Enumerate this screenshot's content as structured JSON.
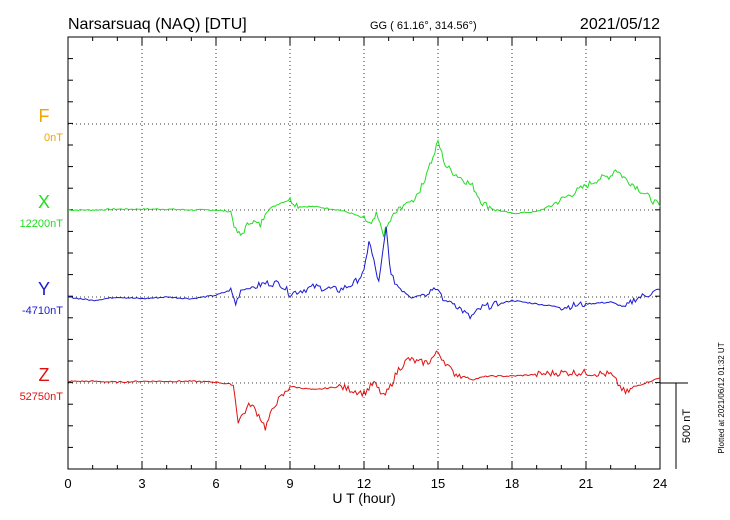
{
  "header": {
    "station": "Narsarsuaq (NAQ)  [DTU]",
    "coords": "GG ( 61.16°, 314.56°)",
    "date": "2021/05/12"
  },
  "footer": {
    "plotted": "Plotted at 2021/06/12 01:32 UT"
  },
  "colors": {
    "F": "#f5a300",
    "X": "#22dd22",
    "Y": "#1a1ad0",
    "Z": "#e01010"
  },
  "chart_data": {
    "type": "line",
    "xlabel": "U T (hour)",
    "xlim": [
      0,
      24
    ],
    "x_ticks": [
      "0",
      "3",
      "6",
      "9",
      "12",
      "15",
      "18",
      "21",
      "24"
    ],
    "scale_bar": "500 nT",
    "series": [
      {
        "name": "F",
        "baseline": "0nT",
        "x": [],
        "y": []
      },
      {
        "name": "X",
        "baseline": "12200nT",
        "x": [
          0,
          1,
          2,
          3,
          4,
          5,
          6,
          6.6,
          6.8,
          7.0,
          7.4,
          7.8,
          8.0,
          8.2,
          8.6,
          9.0,
          9.4,
          10,
          11,
          11.5,
          12,
          12.3,
          12.5,
          12.8,
          13.0,
          13.2,
          13.6,
          14.0,
          14.4,
          14.6,
          14.8,
          15.0,
          15.3,
          15.6,
          16.0,
          16.4,
          16.8,
          17.4,
          18,
          19,
          19.5,
          20,
          21,
          21.5,
          22,
          22.2,
          22.6,
          23,
          23.5,
          24
        ],
        "y": [
          0,
          0,
          5,
          5,
          5,
          0,
          0,
          -10,
          -120,
          -150,
          -60,
          -90,
          -20,
          10,
          40,
          60,
          20,
          20,
          0,
          -20,
          -50,
          -90,
          -30,
          -140,
          -80,
          -30,
          30,
          60,
          150,
          250,
          300,
          400,
          260,
          220,
          180,
          140,
          40,
          0,
          -20,
          -10,
          20,
          60,
          140,
          180,
          200,
          240,
          180,
          140,
          80,
          20
        ]
      },
      {
        "name": "Y",
        "baseline": "-4710nT",
        "x": [
          0,
          1,
          2,
          3,
          4,
          5,
          6,
          6.6,
          6.8,
          7.0,
          7.6,
          8.0,
          8.6,
          9.0,
          10,
          11,
          11.6,
          12,
          12.2,
          12.6,
          12.9,
          13.1,
          13.4,
          14,
          14.5,
          14.9,
          15.2,
          15.6,
          16.0,
          16.3,
          16.8,
          17.5,
          18,
          19,
          20,
          21,
          22,
          22.6,
          23,
          24
        ],
        "y": [
          0,
          -20,
          0,
          -10,
          0,
          -10,
          10,
          40,
          -40,
          40,
          60,
          80,
          80,
          20,
          60,
          40,
          80,
          140,
          330,
          80,
          400,
          120,
          60,
          0,
          20,
          60,
          -20,
          -30,
          -80,
          -120,
          -60,
          -40,
          -20,
          -40,
          -60,
          -40,
          -30,
          -60,
          -10,
          40
        ]
      },
      {
        "name": "Z",
        "baseline": "52750nT",
        "x": [
          0,
          1,
          2,
          3,
          4,
          5,
          6,
          6.7,
          6.9,
          7.1,
          7.4,
          7.8,
          8.0,
          8.4,
          8.8,
          9.0,
          10,
          11,
          12,
          12.4,
          12.8,
          13.0,
          13.4,
          13.8,
          14.2,
          14.6,
          15.0,
          15.3,
          15.6,
          16.0,
          16.4,
          17,
          18,
          19,
          20,
          21,
          22,
          22.6,
          23,
          23.4,
          24
        ],
        "y": [
          10,
          10,
          5,
          10,
          10,
          10,
          5,
          -10,
          -220,
          -180,
          -120,
          -200,
          -260,
          -120,
          -60,
          -20,
          -40,
          -20,
          -60,
          0,
          -80,
          -40,
          80,
          140,
          120,
          120,
          180,
          120,
          60,
          40,
          20,
          40,
          40,
          50,
          60,
          60,
          50,
          -60,
          -20,
          0,
          30
        ]
      }
    ]
  }
}
